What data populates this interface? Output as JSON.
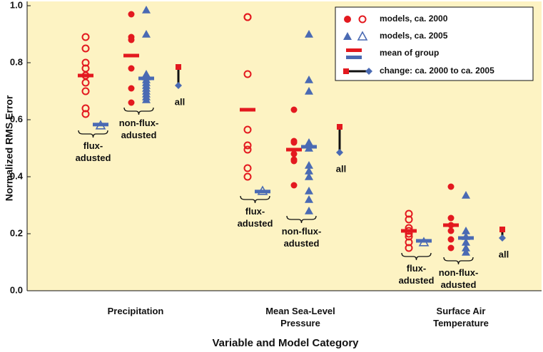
{
  "chart_data": {
    "type": "strip",
    "x_label": "Variable and Model Category",
    "y_label": "Normalized RMS Error",
    "ylim": [
      0,
      1
    ],
    "yticks": [
      {
        "value": 0,
        "label": "0.0"
      },
      0.2,
      0.4,
      0.6,
      0.8,
      {
        "value": 1,
        "label": "1.0"
      }
    ],
    "colors": {
      "ca2000": "#e3191f",
      "ca2005": "#4a6ab3",
      "change": "#111111"
    },
    "legend": {
      "position": "upper right",
      "entries": [
        "models, ca. 2000",
        "models, ca. 2005",
        "mean of group",
        "change: ca. 2000 to ca. 2005"
      ]
    },
    "panels": [
      {
        "category": "Precipitation",
        "change_label": "all",
        "change": [
          0.785,
          0.72
        ],
        "groups": [
          {
            "label": "flux-adusted",
            "filled": false,
            "ca2000": [
              0.89,
              0.85,
              0.8,
              0.78,
              0.755,
              0.73,
              0.7,
              0.64,
              0.62
            ],
            "mean2000": 0.755,
            "ca2005": [
              0.58
            ],
            "mean2005": 0.583
          },
          {
            "label": "non-flux-adusted",
            "filled": true,
            "ca2000": [
              0.97,
              0.89,
              0.88,
              0.78,
              0.71,
              0.66
            ],
            "mean2000": 0.825,
            "ca2005": [
              0.985,
              0.9,
              0.76,
              0.75,
              0.74,
              0.73,
              0.72,
              0.71,
              0.7,
              0.69,
              0.68,
              0.67
            ],
            "mean2005": 0.745
          }
        ]
      },
      {
        "category": "Mean Sea-Level Pressure",
        "change_label": "all",
        "change": [
          0.575,
          0.485
        ],
        "groups": [
          {
            "label": "flux-adusted",
            "filled": false,
            "ca2000": [
              0.96,
              0.96,
              0.76,
              0.565,
              0.51,
              0.495,
              0.43,
              0.4
            ],
            "mean2000": 0.635,
            "ca2005": [
              0.35
            ],
            "mean2005": 0.348
          },
          {
            "label": "non-flux-adusted",
            "filled": true,
            "ca2000": [
              0.635,
              0.525,
              0.52,
              0.48,
              0.46,
              0.455,
              0.37
            ],
            "mean2000": 0.495,
            "ca2005": [
              0.9,
              0.74,
              0.7,
              0.52,
              0.5,
              0.44,
              0.42,
              0.4,
              0.35,
              0.32,
              0.28
            ],
            "mean2005": 0.505
          }
        ]
      },
      {
        "category": "Surface Air Temperature",
        "change_label": "all",
        "change": [
          0.215,
          0.185
        ],
        "groups": [
          {
            "label": "flux-adusted",
            "filled": false,
            "ca2000": [
              0.27,
              0.25,
              0.22,
              0.21,
              0.2,
              0.19,
              0.17,
              0.15
            ],
            "mean2000": 0.21,
            "ca2005": [
              0.17
            ],
            "mean2005": 0.175
          },
          {
            "label": "non-flux-adusted",
            "filled": true,
            "ca2000": [
              0.365,
              0.255,
              0.23,
              0.21,
              0.18,
              0.15
            ],
            "mean2000": 0.23,
            "ca2005": [
              0.335,
              0.21,
              0.19,
              0.17,
              0.15,
              0.135
            ],
            "mean2005": 0.185
          }
        ]
      }
    ]
  }
}
